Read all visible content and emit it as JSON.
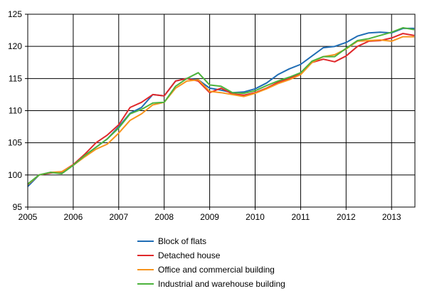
{
  "chart_data": {
    "type": "line",
    "title": "",
    "xlabel": "",
    "ylabel": "",
    "ylim": [
      95,
      125
    ],
    "yticks": [
      "95",
      "100",
      "105",
      "110",
      "115",
      "120",
      "125"
    ],
    "xticks": [
      "2005",
      "2006",
      "2007",
      "2008",
      "2009",
      "2010",
      "2011",
      "2012",
      "2013"
    ],
    "xlim": [
      "2005-01",
      "2013-07"
    ],
    "grid": true,
    "legend_position": "bottom",
    "x": [
      "2005-01",
      "2005-04",
      "2005-07",
      "2005-10",
      "2006-01",
      "2006-04",
      "2006-07",
      "2006-10",
      "2007-01",
      "2007-04",
      "2007-07",
      "2007-10",
      "2008-01",
      "2008-04",
      "2008-07",
      "2008-10",
      "2009-01",
      "2009-04",
      "2009-07",
      "2009-10",
      "2010-01",
      "2010-04",
      "2010-07",
      "2010-10",
      "2011-01",
      "2011-04",
      "2011-07",
      "2011-10",
      "2012-01",
      "2012-04",
      "2012-07",
      "2012-10",
      "2013-01",
      "2013-04",
      "2013-07"
    ],
    "series": [
      {
        "name": "Block of flats",
        "color": "#1f6db5",
        "values": [
          98.2,
          100.0,
          100.4,
          100.3,
          101.5,
          103.0,
          104.3,
          105.6,
          107.5,
          109.6,
          110.5,
          112.5,
          112.3,
          114.6,
          115.0,
          114.8,
          113.5,
          113.2,
          112.8,
          112.9,
          113.4,
          114.3,
          115.6,
          116.5,
          117.2,
          118.5,
          119.8,
          120.0,
          120.6,
          121.6,
          122.1,
          122.2,
          122.1,
          122.8,
          122.8
        ]
      },
      {
        "name": "Detached house",
        "color": "#e0282b",
        "values": [
          98.5,
          100.0,
          100.3,
          100.5,
          101.6,
          103.2,
          105.0,
          106.2,
          107.8,
          110.5,
          111.3,
          112.5,
          112.3,
          114.6,
          115.0,
          114.6,
          112.8,
          113.5,
          112.6,
          112.4,
          112.8,
          113.5,
          114.4,
          115.0,
          115.8,
          117.5,
          118.0,
          117.6,
          118.5,
          120.0,
          120.8,
          120.9,
          121.3,
          122.0,
          121.7
        ]
      },
      {
        "name": "Office and commercial building",
        "color": "#f7941d",
        "values": [
          98.5,
          100.0,
          100.4,
          100.5,
          101.5,
          102.8,
          104.0,
          104.8,
          106.5,
          108.5,
          109.5,
          110.9,
          111.3,
          113.5,
          114.6,
          114.8,
          113.0,
          112.8,
          112.5,
          112.2,
          112.7,
          113.4,
          114.2,
          114.8,
          115.6,
          117.5,
          118.4,
          118.7,
          119.6,
          120.8,
          120.9,
          121.0,
          120.8,
          121.5,
          121.5
        ]
      },
      {
        "name": "Industrial and warehouse  building",
        "color": "#4cb33d",
        "values": [
          98.6,
          100.0,
          100.4,
          100.2,
          101.5,
          103.0,
          104.3,
          105.6,
          107.3,
          109.5,
          110.2,
          111.2,
          111.3,
          113.8,
          115.0,
          115.9,
          114.0,
          113.8,
          112.8,
          112.7,
          113.1,
          113.9,
          114.6,
          115.2,
          115.9,
          117.7,
          118.4,
          118.4,
          119.7,
          120.9,
          121.2,
          121.7,
          122.2,
          122.9,
          122.6
        ]
      }
    ]
  }
}
